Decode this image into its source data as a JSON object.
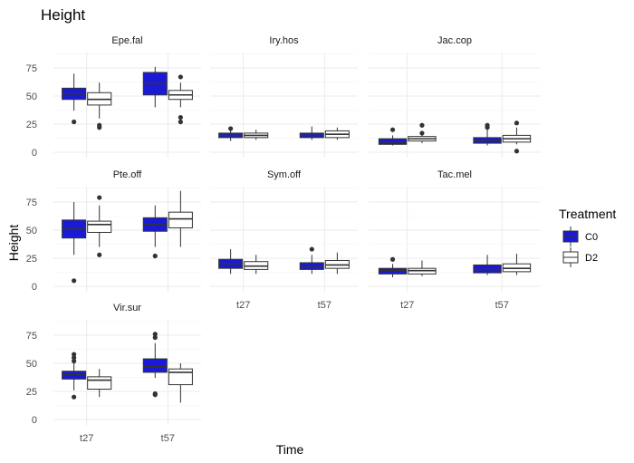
{
  "chart_data": {
    "type": "boxplot",
    "title": "Height",
    "xlabel": "Time",
    "ylabel": "Height",
    "categories": [
      "t27",
      "t57"
    ],
    "ylim": [
      -5,
      90
    ],
    "yticks": [
      0,
      25,
      50,
      75
    ],
    "grid": true,
    "legend": {
      "title": "Treatment",
      "placement": "right",
      "entries": [
        {
          "name": "C0",
          "fill": "#1a1ad6"
        },
        {
          "name": "D2",
          "fill": "#ffffff"
        }
      ]
    },
    "panels": [
      {
        "title": "Epe.fal",
        "groups": [
          {
            "time": "t27",
            "treatment": "C0",
            "min": 37,
            "q1": 47,
            "median": 52,
            "q3": 57,
            "max": 70,
            "outliers": [
              27
            ]
          },
          {
            "time": "t27",
            "treatment": "D2",
            "min": 30,
            "q1": 42,
            "median": 47,
            "q3": 53,
            "max": 62,
            "outliers": [
              22,
              24
            ]
          },
          {
            "time": "t57",
            "treatment": "C0",
            "min": 40,
            "q1": 51,
            "median": 61,
            "q3": 71,
            "max": 76,
            "outliers": []
          },
          {
            "time": "t57",
            "treatment": "D2",
            "min": 40,
            "q1": 47,
            "median": 51,
            "q3": 55,
            "max": 62,
            "outliers": [
              27,
              31,
              67
            ]
          }
        ]
      },
      {
        "title": "Iry.hos",
        "groups": [
          {
            "time": "t27",
            "treatment": "C0",
            "min": 10,
            "q1": 13,
            "median": 15,
            "q3": 17,
            "max": 20,
            "outliers": [
              21
            ]
          },
          {
            "time": "t27",
            "treatment": "D2",
            "min": 11,
            "q1": 13,
            "median": 15,
            "q3": 17,
            "max": 20,
            "outliers": []
          },
          {
            "time": "t57",
            "treatment": "C0",
            "min": 11,
            "q1": 13,
            "median": 15,
            "q3": 17,
            "max": 23,
            "outliers": []
          },
          {
            "time": "t57",
            "treatment": "D2",
            "min": 11,
            "q1": 13,
            "median": 16,
            "q3": 19,
            "max": 22,
            "outliers": []
          }
        ]
      },
      {
        "title": "Jac.cop",
        "groups": [
          {
            "time": "t27",
            "treatment": "C0",
            "min": 6,
            "q1": 7,
            "median": 9,
            "q3": 12,
            "max": 15,
            "outliers": [
              20
            ]
          },
          {
            "time": "t27",
            "treatment": "D2",
            "min": 8,
            "q1": 10,
            "median": 12,
            "q3": 14,
            "max": 16,
            "outliers": [
              17,
              24
            ]
          },
          {
            "time": "t57",
            "treatment": "C0",
            "min": 6,
            "q1": 8,
            "median": 10,
            "q3": 13,
            "max": 20,
            "outliers": [
              22,
              24
            ]
          },
          {
            "time": "t57",
            "treatment": "D2",
            "min": 7,
            "q1": 9,
            "median": 12,
            "q3": 15,
            "max": 22,
            "outliers": [
              1,
              26
            ]
          }
        ]
      },
      {
        "title": "Pte.off",
        "groups": [
          {
            "time": "t27",
            "treatment": "C0",
            "min": 28,
            "q1": 43,
            "median": 51,
            "q3": 59,
            "max": 75,
            "outliers": [
              5
            ]
          },
          {
            "time": "t27",
            "treatment": "D2",
            "min": 35,
            "q1": 48,
            "median": 55,
            "q3": 58,
            "max": 72,
            "outliers": [
              28,
              79
            ]
          },
          {
            "time": "t57",
            "treatment": "C0",
            "min": 35,
            "q1": 49,
            "median": 55,
            "q3": 61,
            "max": 72,
            "outliers": [
              27
            ]
          },
          {
            "time": "t57",
            "treatment": "D2",
            "min": 35,
            "q1": 52,
            "median": 60,
            "q3": 66,
            "max": 85,
            "outliers": []
          }
        ]
      },
      {
        "title": "Sym.off",
        "groups": [
          {
            "time": "t27",
            "treatment": "C0",
            "min": 11,
            "q1": 16,
            "median": 20,
            "q3": 24,
            "max": 33,
            "outliers": []
          },
          {
            "time": "t27",
            "treatment": "D2",
            "min": 11,
            "q1": 15,
            "median": 18,
            "q3": 22,
            "max": 28,
            "outliers": []
          },
          {
            "time": "t57",
            "treatment": "C0",
            "min": 11,
            "q1": 15,
            "median": 17,
            "q3": 21,
            "max": 28,
            "outliers": [
              33
            ]
          },
          {
            "time": "t57",
            "treatment": "D2",
            "min": 11,
            "q1": 16,
            "median": 19,
            "q3": 23,
            "max": 30,
            "outliers": []
          }
        ]
      },
      {
        "title": "Tac.mel",
        "groups": [
          {
            "time": "t27",
            "treatment": "C0",
            "min": 8,
            "q1": 11,
            "median": 14,
            "q3": 16,
            "max": 20,
            "outliers": [
              24
            ]
          },
          {
            "time": "t27",
            "treatment": "D2",
            "min": 9,
            "q1": 11,
            "median": 14,
            "q3": 16,
            "max": 23,
            "outliers": []
          },
          {
            "time": "t57",
            "treatment": "C0",
            "min": 10,
            "q1": 12,
            "median": 15,
            "q3": 19,
            "max": 28,
            "outliers": []
          },
          {
            "time": "t57",
            "treatment": "D2",
            "min": 10,
            "q1": 13,
            "median": 16,
            "q3": 20,
            "max": 29,
            "outliers": []
          }
        ]
      },
      {
        "title": "Vir.sur",
        "groups": [
          {
            "time": "t27",
            "treatment": "C0",
            "min": 26,
            "q1": 36,
            "median": 40,
            "q3": 43,
            "max": 50,
            "outliers": [
              20,
              52,
              55,
              58
            ]
          },
          {
            "time": "t27",
            "treatment": "D2",
            "min": 20,
            "q1": 27,
            "median": 35,
            "q3": 38,
            "max": 45,
            "outliers": []
          },
          {
            "time": "t57",
            "treatment": "C0",
            "min": 37,
            "q1": 42,
            "median": 47,
            "q3": 54,
            "max": 68,
            "outliers": [
              22,
              23,
              73,
              76
            ]
          },
          {
            "time": "t57",
            "treatment": "D2",
            "min": 15,
            "q1": 31,
            "median": 42,
            "q3": 45,
            "max": 50,
            "outliers": []
          }
        ]
      }
    ]
  }
}
